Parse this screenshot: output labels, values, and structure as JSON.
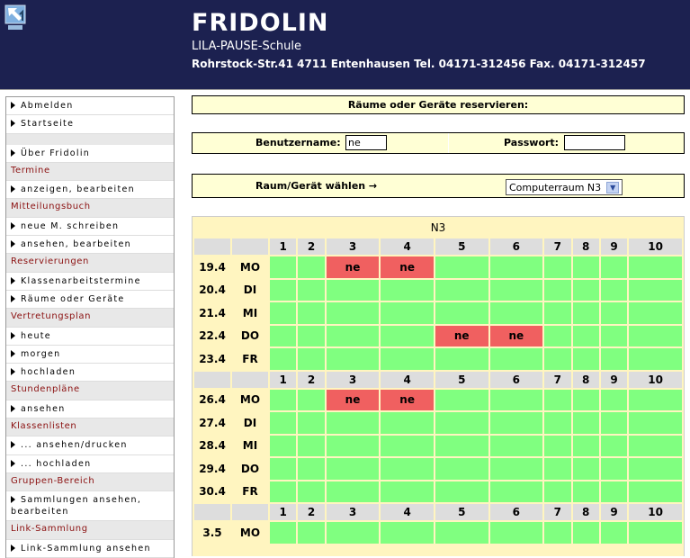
{
  "header": {
    "title": "FRIDOLIN",
    "school": "LILA-PAUSE-Schule",
    "address": "Rohrstock-Str.41 4711 Entenhausen Tel. 04171-312456 Fax. 04171-312457"
  },
  "sidebar": [
    {
      "type": "link",
      "label": "Abmelden"
    },
    {
      "type": "link",
      "label": "Startseite"
    },
    {
      "type": "blank"
    },
    {
      "type": "link",
      "label": "Über Fridolin"
    },
    {
      "type": "section",
      "label": "Termine"
    },
    {
      "type": "link",
      "label": "anzeigen, bearbeiten"
    },
    {
      "type": "section",
      "label": "Mitteilungsbuch"
    },
    {
      "type": "link",
      "label": "neue M. schreiben"
    },
    {
      "type": "link",
      "label": "ansehen, bearbeiten"
    },
    {
      "type": "section",
      "label": "Reservierungen"
    },
    {
      "type": "link",
      "label": "Klassenarbeitstermine"
    },
    {
      "type": "link",
      "label": "Räume oder Geräte"
    },
    {
      "type": "section",
      "label": "Vertretungsplan"
    },
    {
      "type": "link",
      "label": "heute"
    },
    {
      "type": "link",
      "label": "morgen"
    },
    {
      "type": "link",
      "label": "hochladen"
    },
    {
      "type": "section",
      "label": "Stundenpläne"
    },
    {
      "type": "link",
      "label": "ansehen"
    },
    {
      "type": "section",
      "label": "Klassenlisten"
    },
    {
      "type": "link",
      "label": "... ansehen/drucken"
    },
    {
      "type": "link",
      "label": "... hochladen"
    },
    {
      "type": "section",
      "label": "Gruppen-Bereich"
    },
    {
      "type": "link",
      "label": "Sammlungen ansehen, bearbeiten",
      "double": true
    },
    {
      "type": "section",
      "label": "Link-Sammlung"
    },
    {
      "type": "link",
      "label": "Link-Sammlung ansehen"
    }
  ],
  "main": {
    "heading": "Räume oder Geräte reservieren:",
    "username_label": "Benutzername:",
    "username_value": "ne",
    "password_label": "Passwort:",
    "password_value": "",
    "choose_label": "Raum/Gerät wählen →",
    "room_selected": "Computerraum N3"
  },
  "grid": {
    "title": "N3",
    "periods": [
      "1",
      "2",
      "3",
      "4",
      "5",
      "6",
      "7",
      "8",
      "9",
      "10"
    ],
    "colors": {
      "free": "#80ff80",
      "busy": "#f06060"
    },
    "weeks": [
      [
        {
          "date": "19.4",
          "day": "MO",
          "bookings": {
            "3": "ne",
            "4": "ne"
          }
        },
        {
          "date": "20.4",
          "day": "DI",
          "bookings": {}
        },
        {
          "date": "21.4",
          "day": "MI",
          "bookings": {}
        },
        {
          "date": "22.4",
          "day": "DO",
          "bookings": {
            "5": "ne",
            "6": "ne"
          }
        },
        {
          "date": "23.4",
          "day": "FR",
          "bookings": {}
        }
      ],
      [
        {
          "date": "26.4",
          "day": "MO",
          "bookings": {
            "3": "ne",
            "4": "ne"
          }
        },
        {
          "date": "27.4",
          "day": "DI",
          "bookings": {}
        },
        {
          "date": "28.4",
          "day": "MI",
          "bookings": {}
        },
        {
          "date": "29.4",
          "day": "DO",
          "bookings": {}
        },
        {
          "date": "30.4",
          "day": "FR",
          "bookings": {}
        }
      ],
      [
        {
          "date": "3.5",
          "day": "MO",
          "bookings": {}
        }
      ]
    ]
  }
}
